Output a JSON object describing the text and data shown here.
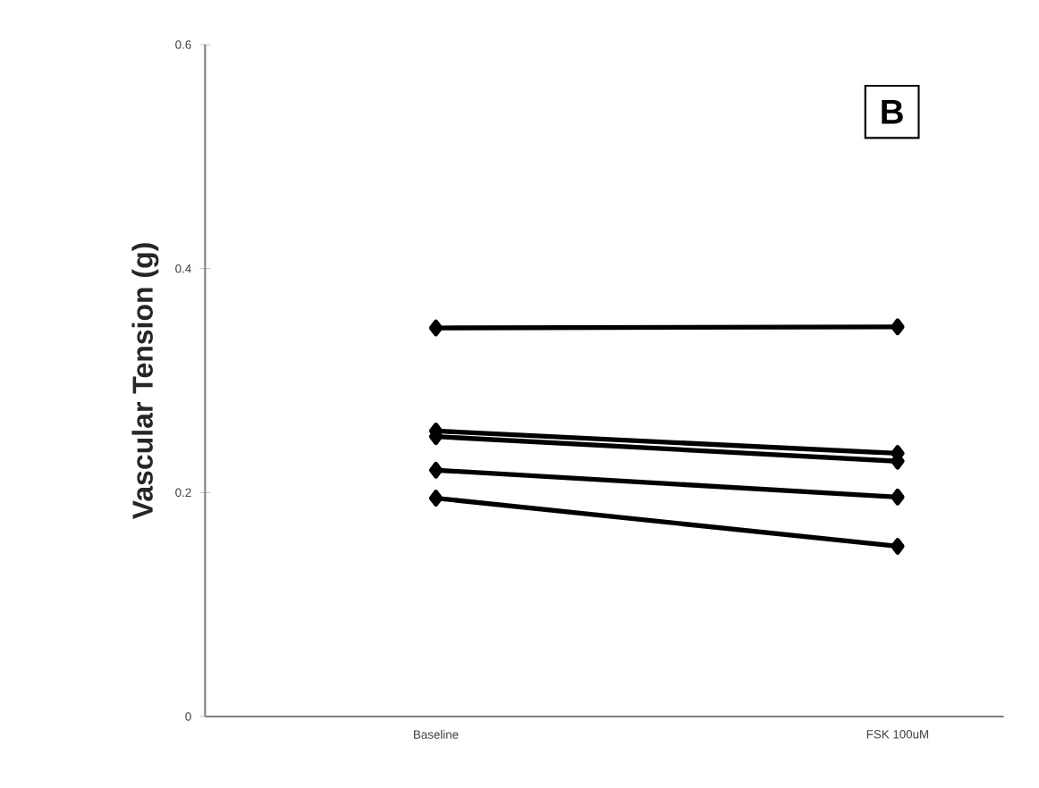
{
  "chart_data": {
    "type": "line",
    "ylabel": "Vascular Tension (g)",
    "categories": [
      "Baseline",
      "FSK 100uM"
    ],
    "series": [
      {
        "color": "#000000",
        "values": [
          0.347,
          0.348
        ]
      },
      {
        "color": "#000000",
        "values": [
          0.255,
          0.235
        ]
      },
      {
        "color": "#000000",
        "values": [
          0.25,
          0.228
        ]
      },
      {
        "color": "#000000",
        "values": [
          0.22,
          0.196
        ]
      },
      {
        "color": "#000000",
        "values": [
          0.195,
          0.152
        ]
      }
    ],
    "ylim": [
      0,
      0.6
    ],
    "yticks": [
      0,
      0.2,
      0.4,
      0.6
    ],
    "marker": "diamond",
    "line_style": "solid",
    "annotations": [
      "B"
    ]
  }
}
